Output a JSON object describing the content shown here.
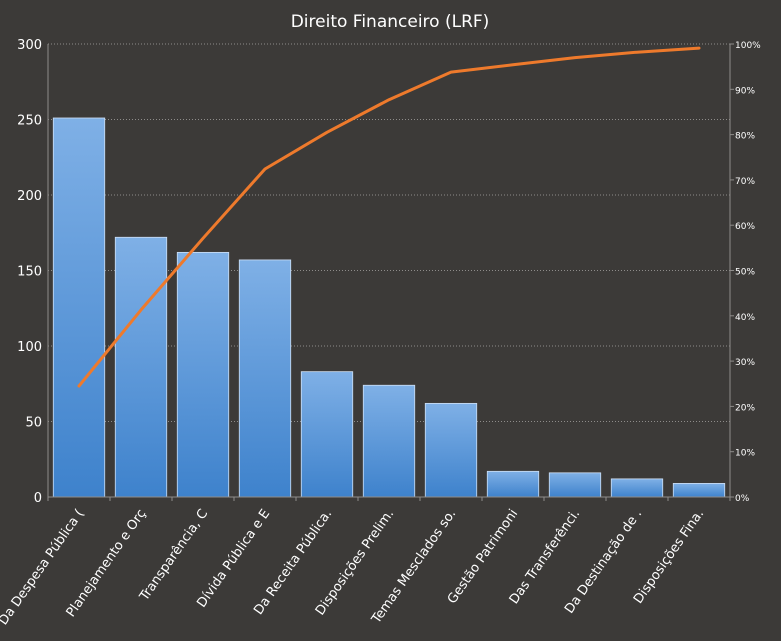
{
  "chart_data": {
    "type": "bar",
    "title": "Direito Financeiro (LRF)",
    "categories": [
      "Da Despesa Pública (",
      "Planejamento e Orç",
      "Transparência, C",
      "Dívida Pública e E",
      "Da Receita Pública.",
      "Disposições Prelim.",
      "Temas Mesclados so.",
      "Gestão Patrimoni",
      "Das Transferênci.",
      "Da Destinação de .",
      "Disposições Fina."
    ],
    "series": [
      {
        "type": "bar",
        "values": [
          251,
          172,
          162,
          157,
          83,
          74,
          62,
          17,
          16,
          12,
          9
        ]
      },
      {
        "type": "line",
        "axis": "right",
        "values": [
          24.5,
          41.3,
          57.1,
          72.4,
          80.5,
          87.7,
          93.8,
          95.4,
          97.0,
          98.2,
          99.1
        ]
      }
    ],
    "y_left": {
      "ylim": [
        0,
        300
      ],
      "ticks": [
        "0",
        "50",
        "100",
        "150",
        "200",
        "250",
        "300"
      ]
    },
    "y_right": {
      "ylim": [
        0,
        100
      ],
      "ticks": [
        "0%",
        "10%",
        "20%",
        "30%",
        "40%",
        "50%",
        "60%",
        "70%",
        "80%",
        "90%",
        "100%"
      ]
    },
    "grid": true,
    "legend": "none",
    "colors": {
      "background": "#3c3a38",
      "bar_top": "#7fb0e6",
      "bar_bottom": "#3e82cc",
      "bar_stroke": "#cfe0f5",
      "line": "#ee7a2c",
      "grid": "#8e8c8a",
      "text": "#ffffff"
    }
  }
}
